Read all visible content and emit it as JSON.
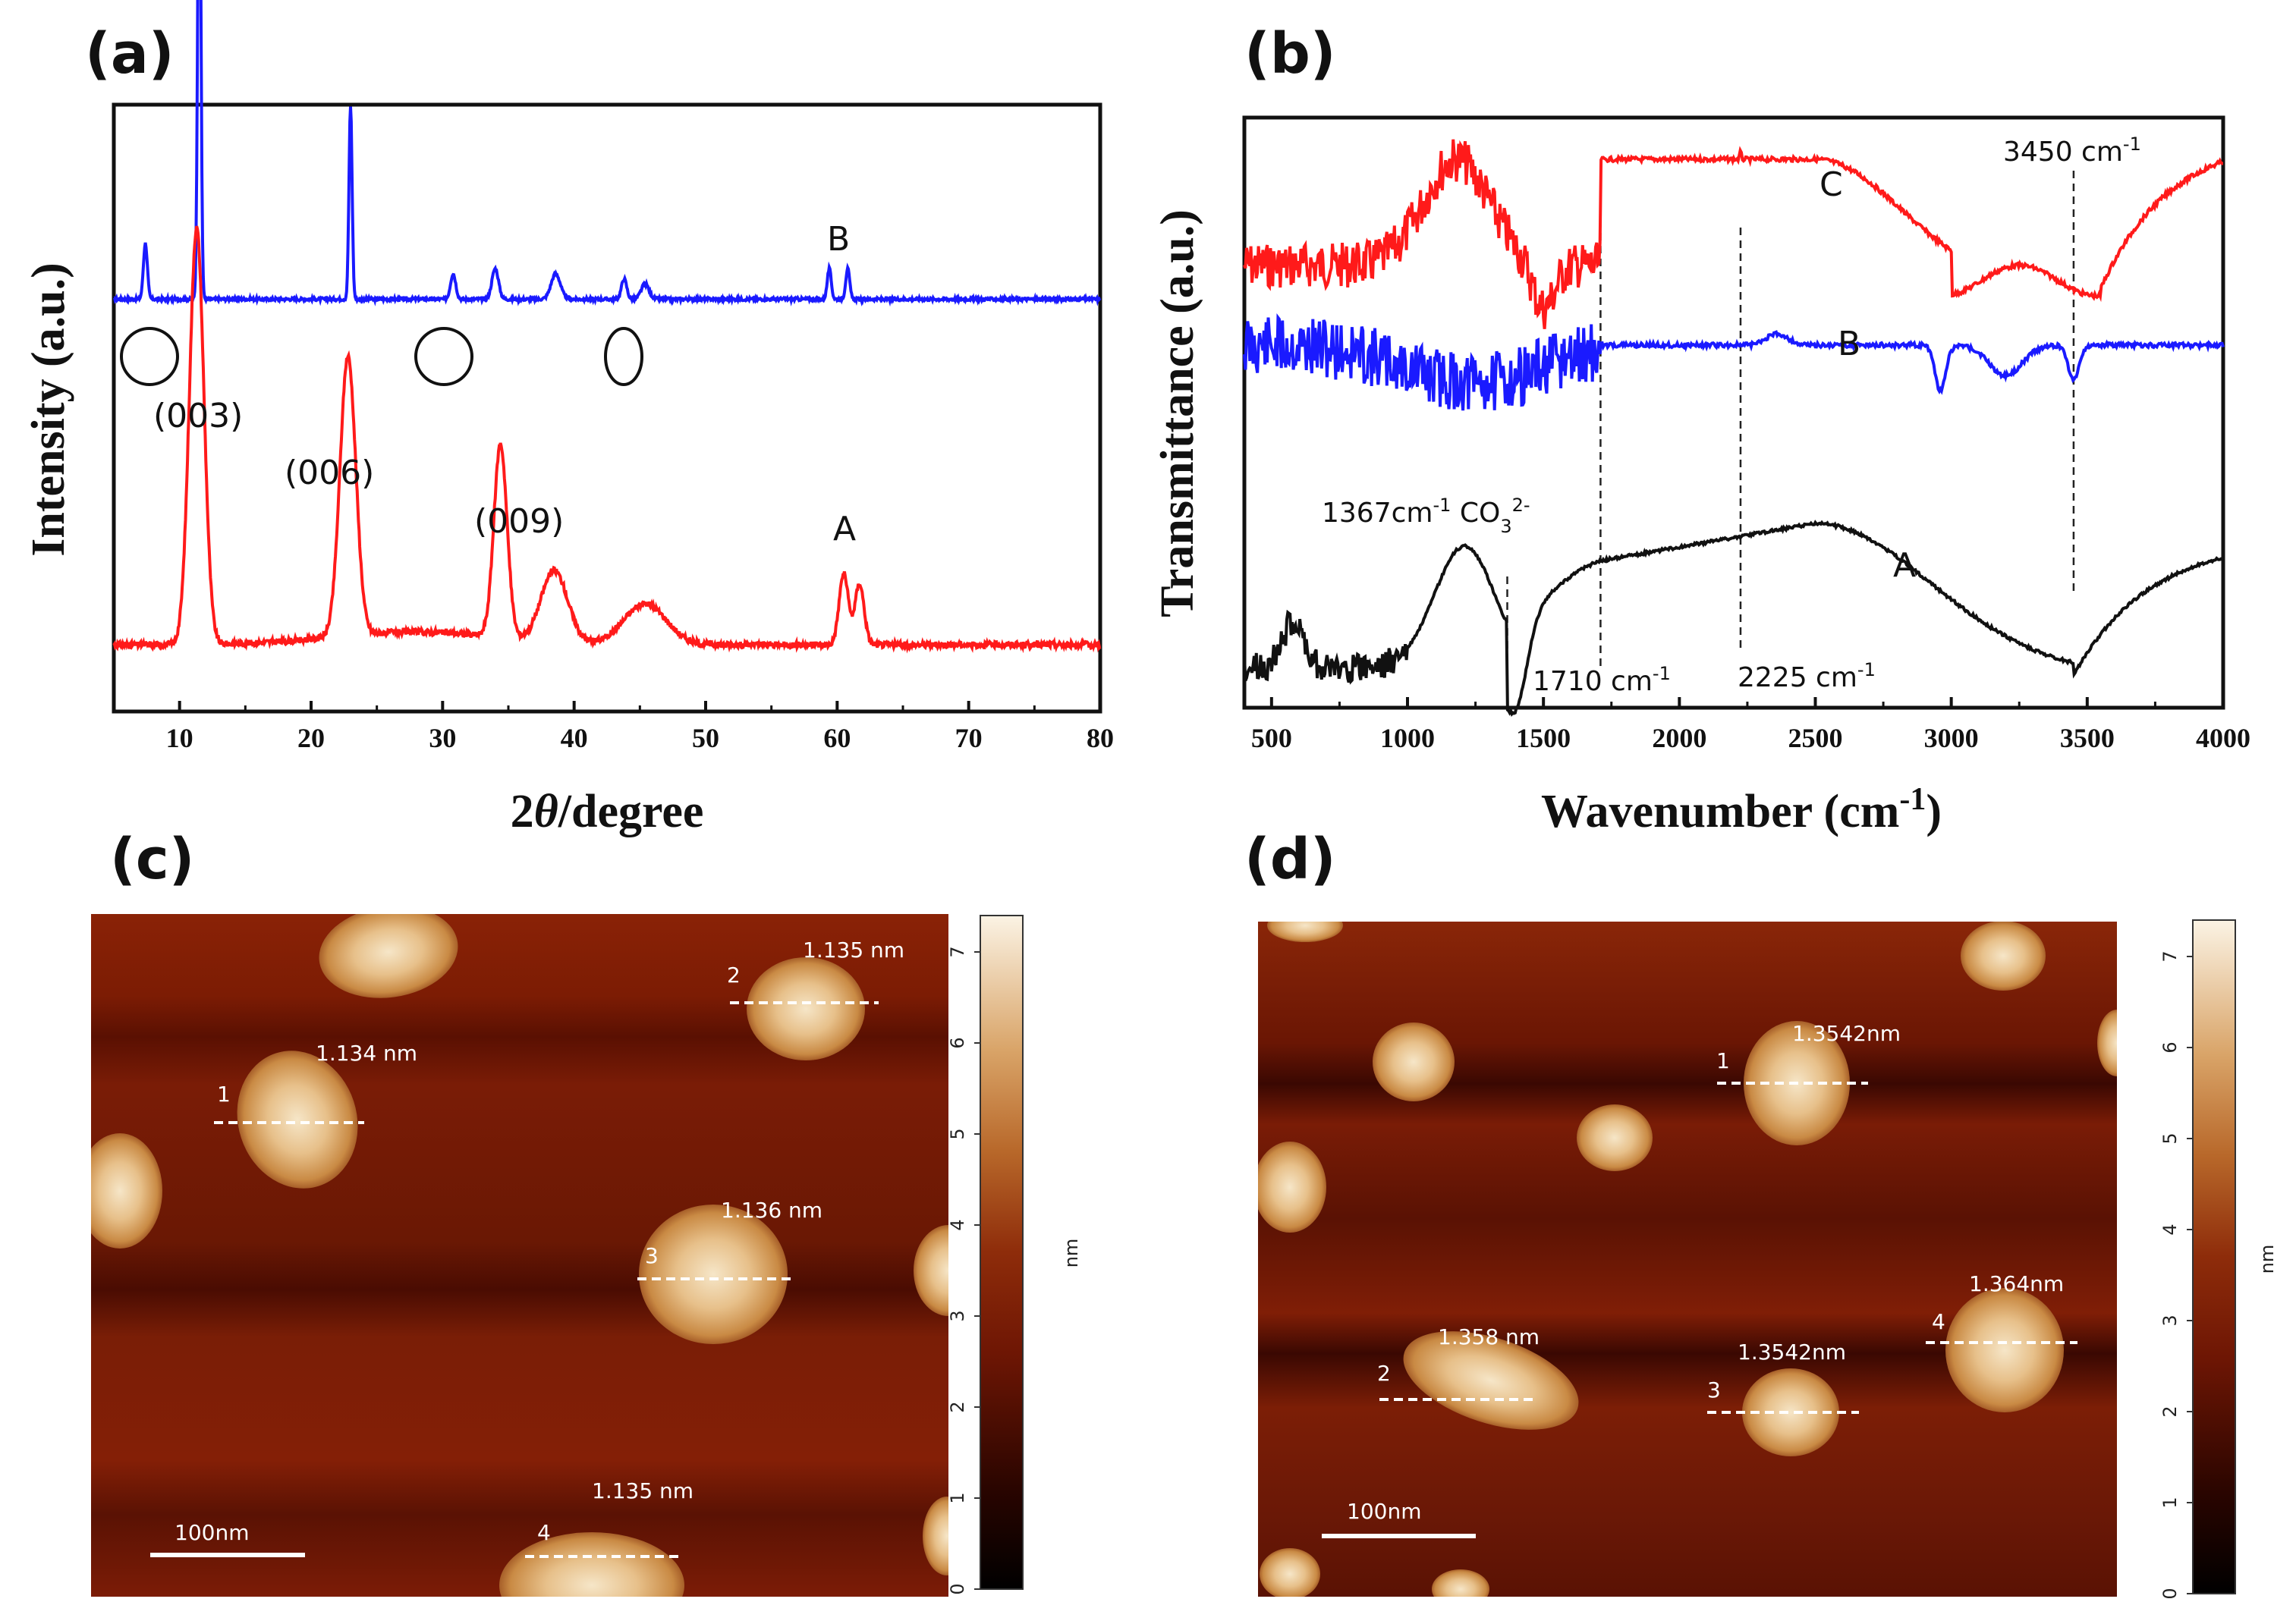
{
  "panels": {
    "a": "(a)",
    "b": "(b)",
    "c": "(c)",
    "d": "(d)"
  },
  "chart_data": [
    {
      "id": "a",
      "type": "line",
      "title": "",
      "xlabel": "2θ/degree",
      "ylabel": "Intensity (a.u.)",
      "xlim": [
        5,
        80
      ],
      "xticks": [
        "10",
        "20",
        "30",
        "40",
        "50",
        "60",
        "70",
        "80"
      ],
      "series": [
        {
          "name": "B",
          "color": "#1a1aff",
          "baseline": 0.68,
          "peaks": [
            [
              7.4,
              0.11,
              0.15
            ],
            [
              11.5,
              1.0,
              0.12
            ],
            [
              23.0,
              0.38,
              0.12
            ],
            [
              30.8,
              0.05,
              0.2
            ],
            [
              34.0,
              0.06,
              0.25
            ],
            [
              38.6,
              0.05,
              0.35
            ],
            [
              43.8,
              0.04,
              0.2
            ],
            [
              45.4,
              0.03,
              0.3
            ],
            [
              59.4,
              0.06,
              0.15
            ],
            [
              60.8,
              0.06,
              0.15
            ]
          ]
        },
        {
          "name": "A",
          "color": "#ff1a1a",
          "baseline": 0.0,
          "peaks": [
            [
              11.3,
              0.82,
              0.55
            ],
            [
              22.8,
              0.55,
              0.6
            ],
            [
              34.4,
              0.38,
              0.5
            ],
            [
              38.5,
              0.14,
              1.0
            ],
            [
              45.4,
              0.08,
              1.6
            ],
            [
              60.5,
              0.14,
              0.35
            ],
            [
              61.7,
              0.12,
              0.35
            ]
          ]
        }
      ],
      "annotations": [
        "B",
        "A",
        "(003)",
        "(006)",
        "(009)"
      ]
    },
    {
      "id": "b",
      "type": "line",
      "title": "",
      "xlabel": "Wavenumber (cm-1)",
      "ylabel": "Transmittance (a.u.)",
      "xlim": [
        400,
        4000
      ],
      "xticks": [
        "500",
        "1000",
        "1500",
        "2000",
        "2500",
        "3000",
        "3500",
        "4000"
      ],
      "series": [
        {
          "name": "C",
          "color": "#ff1a1a"
        },
        {
          "name": "B",
          "color": "#1a1aff"
        },
        {
          "name": "A",
          "color": "#111111"
        }
      ],
      "annotations": [
        "C",
        "B",
        "A",
        "3450 cm-1",
        "1367cm-1 CO32-",
        "1710 cm-1",
        "2225 cm-1"
      ],
      "marker_lines": [
        1367,
        1710,
        2225,
        3450
      ]
    }
  ],
  "afm": [
    {
      "id": "c",
      "scale_bar": "100nm",
      "colorbar_unit": "nm",
      "colorbar_ticks": [
        "0",
        "1",
        "2",
        "3",
        "4",
        "5",
        "6",
        "7"
      ],
      "profiles": [
        {
          "num": "1",
          "height": "1.134 nm"
        },
        {
          "num": "2",
          "height": "1.135 nm"
        },
        {
          "num": "3",
          "height": "1.136 nm"
        },
        {
          "num": "4",
          "height": "1.135 nm"
        }
      ]
    },
    {
      "id": "d",
      "scale_bar": "100nm",
      "colorbar_unit": "nm",
      "colorbar_ticks": [
        "0",
        "1",
        "2",
        "3",
        "4",
        "5",
        "6",
        "7"
      ],
      "profiles": [
        {
          "num": "1",
          "height": "1.3542nm"
        },
        {
          "num": "2",
          "height": "1.358 nm"
        },
        {
          "num": "3",
          "height": "1.3542nm"
        },
        {
          "num": "4",
          "height": "1.364nm"
        }
      ]
    }
  ],
  "colors": {
    "afm_dark": "#1a0400",
    "afm_mid": "#7a1e06",
    "afm_gold": "#c88a40",
    "afm_light": "#f4e4c4"
  }
}
